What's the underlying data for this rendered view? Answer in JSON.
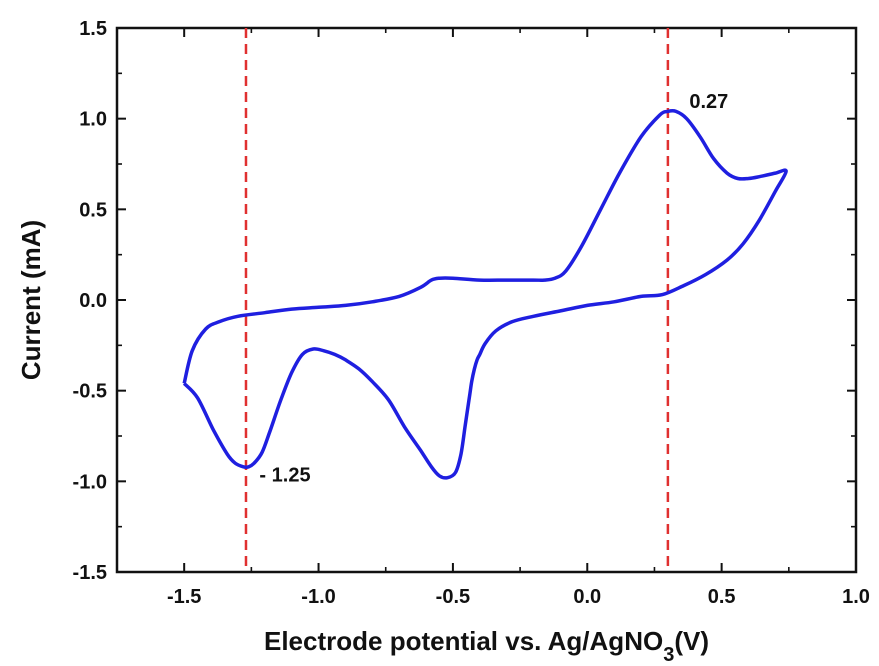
{
  "chart_data": {
    "type": "line",
    "title": "",
    "xlabel": "Electrode potential vs. Ag/AgNO",
    "xlabel_sub": "3",
    "xlabel_suffix": "(V)",
    "ylabel": "Current (mA)",
    "xlim": [
      -1.75,
      1.0
    ],
    "ylim": [
      -1.5,
      1.5
    ],
    "x_ticks": [
      -1.5,
      -1.0,
      -0.5,
      0.0,
      0.5,
      1.0
    ],
    "x_tick_labels": [
      "-1.5",
      "-1.0",
      "-0.5",
      "0.0",
      "0.5",
      "1.0"
    ],
    "y_ticks": [
      -1.5,
      -1.0,
      -0.5,
      0.0,
      0.5,
      1.0,
      1.5
    ],
    "y_tick_labels": [
      "-1.5",
      "-1.0",
      "-0.5",
      "0.0",
      "0.5",
      "1.0",
      "1.5"
    ],
    "grid": false,
    "series": [
      {
        "color": "#1f1fe0",
        "x": [
          -1.5,
          -1.45,
          -1.39,
          -1.34,
          -1.31,
          -1.28,
          -1.26,
          -1.24,
          -1.21,
          -1.18,
          -1.14,
          -1.1,
          -1.06,
          -1.02,
          -0.98,
          -0.94,
          -0.9,
          -0.85,
          -0.8,
          -0.74,
          -0.68,
          -0.62,
          -0.58,
          -0.55,
          -0.52,
          -0.49,
          -0.47,
          -0.455,
          -0.44,
          -0.43,
          -0.42,
          -0.41,
          -0.4,
          -0.38,
          -0.34,
          -0.28,
          -0.2,
          -0.1,
          0.0,
          0.1,
          0.2,
          0.28,
          0.36,
          0.44,
          0.52,
          0.58,
          0.64,
          0.7,
          0.74,
          0.7,
          0.64,
          0.6,
          0.56,
          0.52,
          0.47,
          0.42,
          0.37,
          0.33,
          0.3,
          0.27,
          0.2,
          0.12,
          0.05,
          -0.02,
          -0.08,
          -0.12,
          -0.16,
          -0.2,
          -0.3,
          -0.4,
          -0.5,
          -0.55,
          -0.58,
          -0.62,
          -0.7,
          -0.8,
          -0.9,
          -1.0,
          -1.1,
          -1.2,
          -1.3,
          -1.37,
          -1.42,
          -1.47,
          -1.5
        ],
        "y": [
          -0.46,
          -0.54,
          -0.72,
          -0.85,
          -0.9,
          -0.92,
          -0.92,
          -0.9,
          -0.84,
          -0.72,
          -0.55,
          -0.4,
          -0.3,
          -0.27,
          -0.28,
          -0.3,
          -0.33,
          -0.38,
          -0.45,
          -0.55,
          -0.7,
          -0.83,
          -0.92,
          -0.97,
          -0.98,
          -0.95,
          -0.85,
          -0.7,
          -0.55,
          -0.45,
          -0.38,
          -0.33,
          -0.3,
          -0.24,
          -0.17,
          -0.12,
          -0.09,
          -0.06,
          -0.03,
          -0.01,
          0.02,
          0.03,
          0.08,
          0.14,
          0.22,
          0.31,
          0.44,
          0.6,
          0.71,
          0.7,
          0.68,
          0.67,
          0.67,
          0.7,
          0.78,
          0.9,
          1.0,
          1.04,
          1.04,
          1.02,
          0.9,
          0.7,
          0.5,
          0.3,
          0.16,
          0.12,
          0.11,
          0.11,
          0.11,
          0.11,
          0.12,
          0.12,
          0.11,
          0.07,
          0.02,
          -0.01,
          -0.03,
          -0.04,
          -0.05,
          -0.07,
          -0.09,
          -0.12,
          -0.16,
          -0.28,
          -0.46
        ]
      }
    ],
    "reference_lines": [
      {
        "x": -1.27,
        "color": "#e03030",
        "style": "dashed"
      },
      {
        "x": 0.3,
        "color": "#e03030",
        "style": "dashed"
      }
    ],
    "annotations": [
      {
        "text": "0.27",
        "x": 0.38,
        "y": 1.06
      },
      {
        "text": "- 1.25",
        "x": -1.22,
        "y": -1.0
      }
    ]
  }
}
